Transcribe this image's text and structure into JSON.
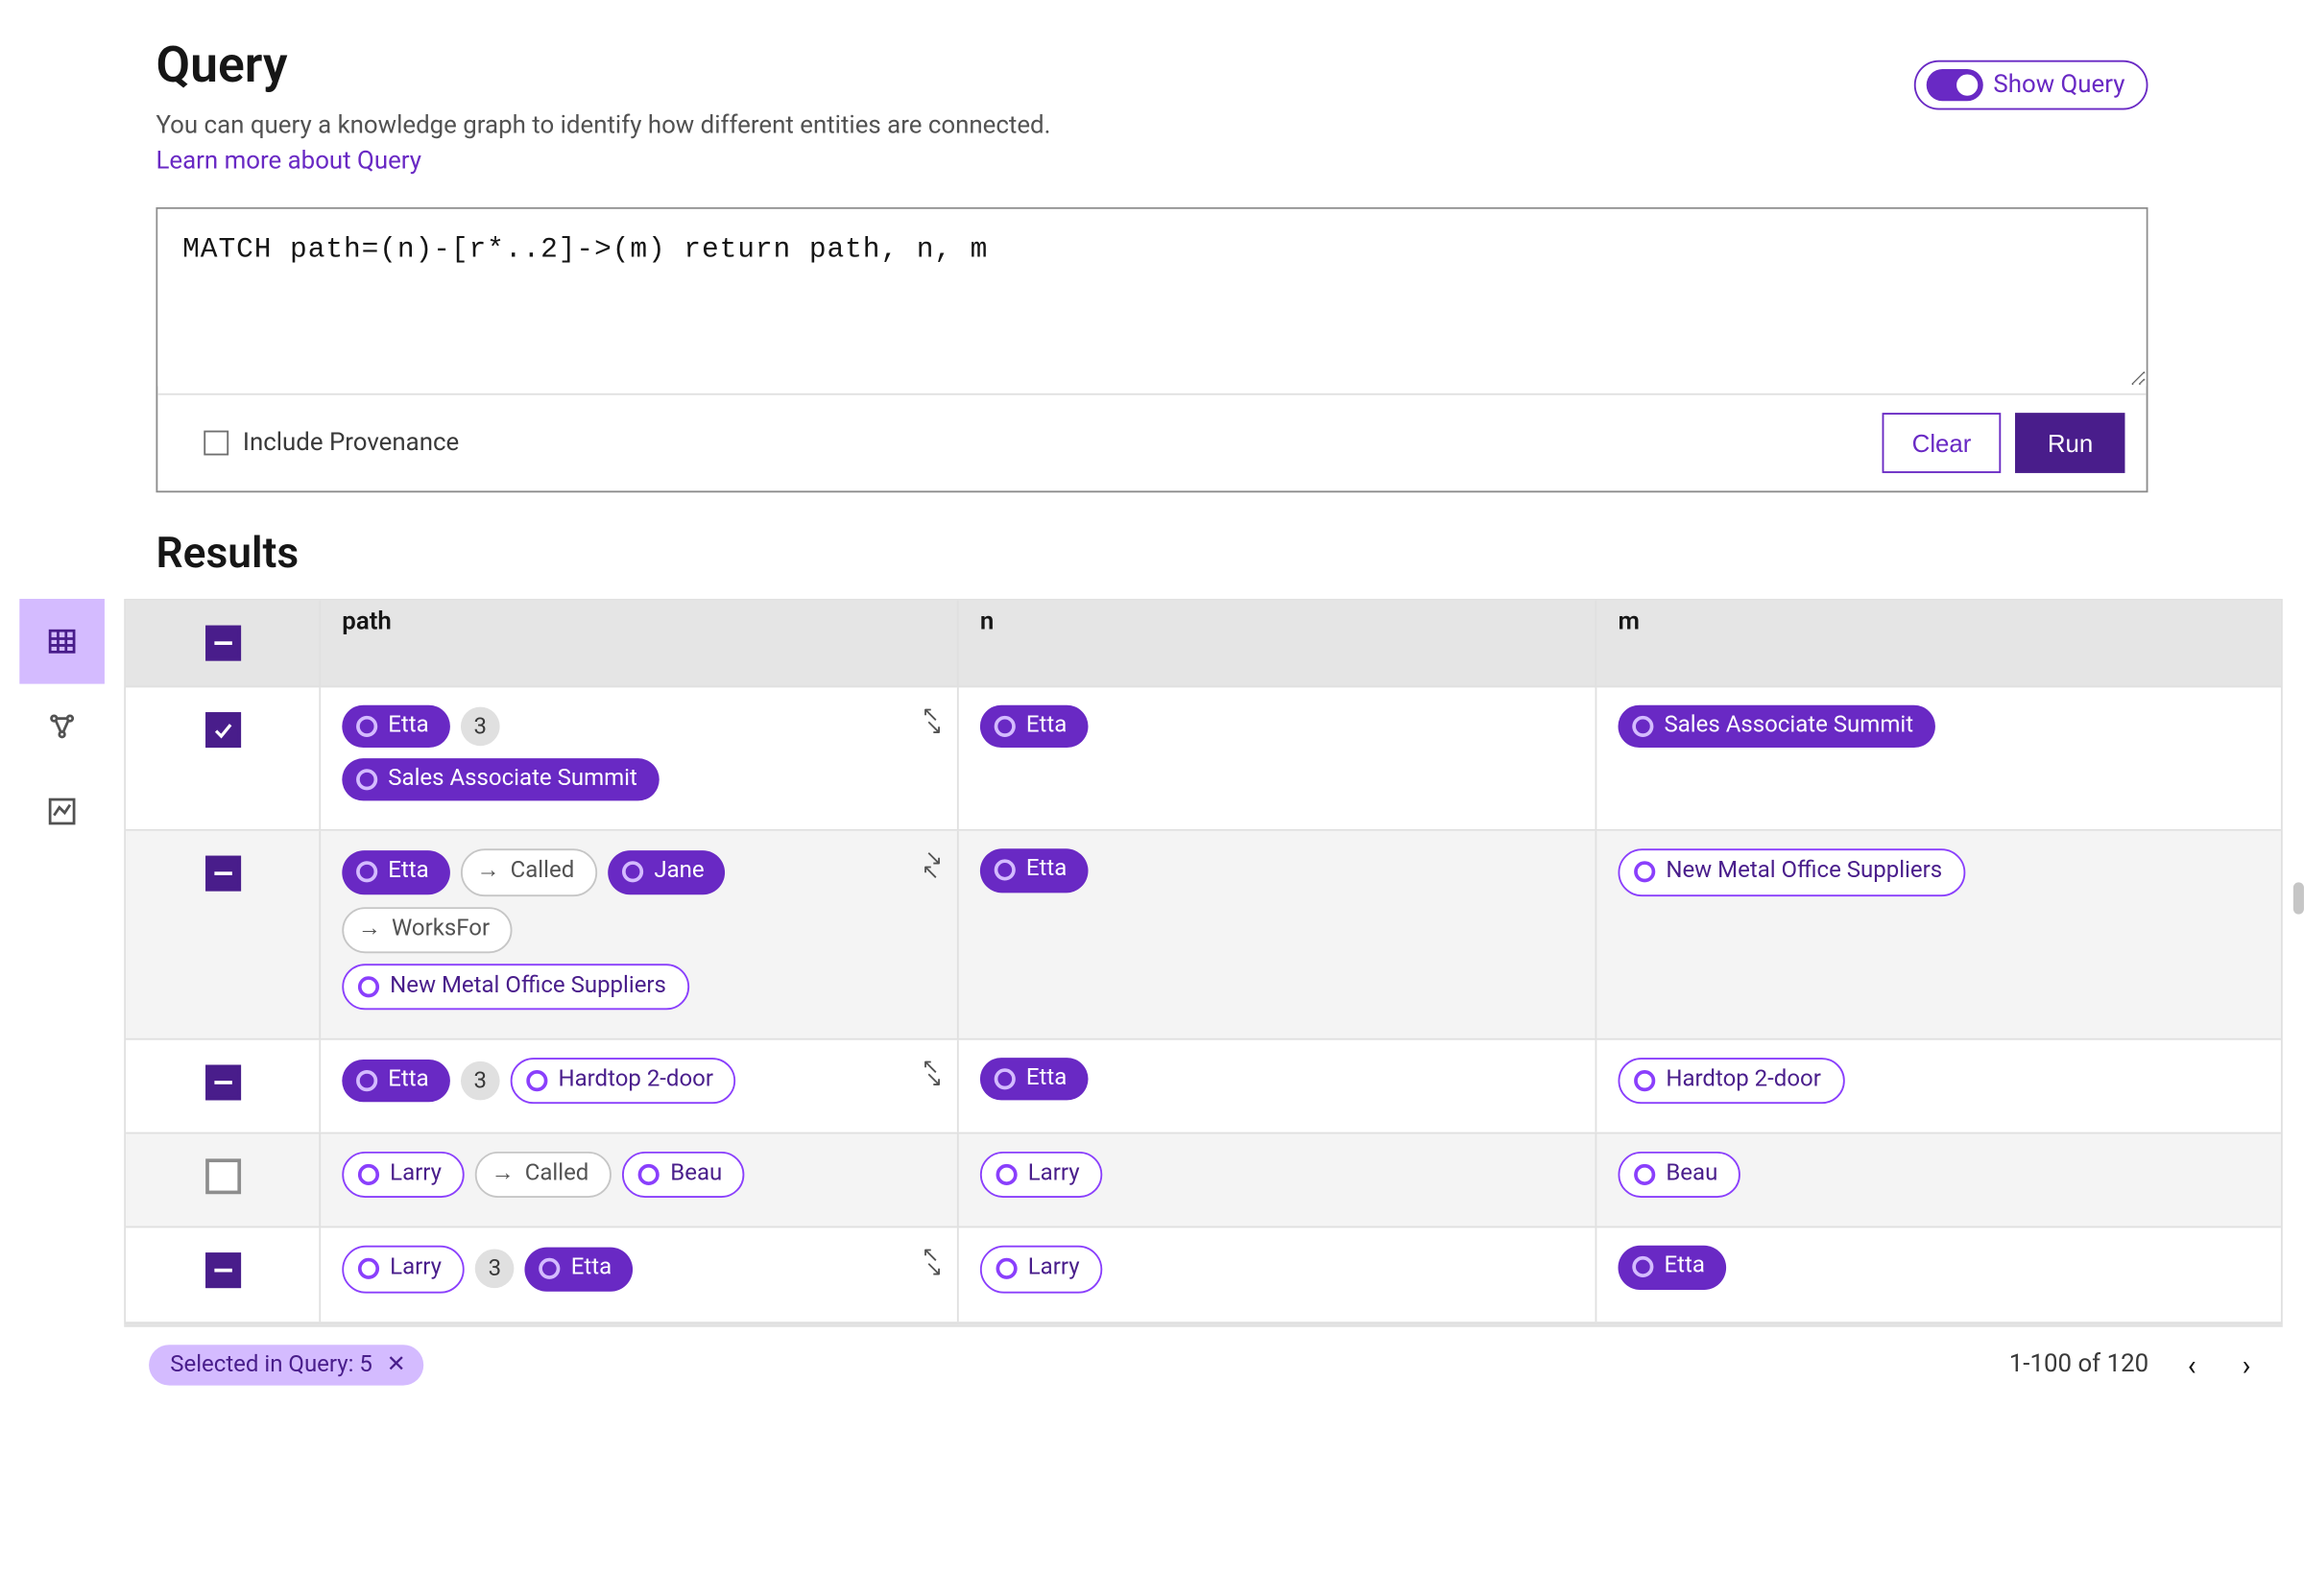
{
  "header": {
    "title": "Query",
    "subtitle": "You can query a knowledge graph to identify how different entities are connected.",
    "learn_more": "Learn more about Query",
    "show_query_label": "Show Query"
  },
  "query": {
    "text": "MATCH path=(n)-[r*..2]->(m) return path, n, m",
    "include_provenance_label": "Include Provenance",
    "include_provenance_checked": false,
    "clear_label": "Clear",
    "run_label": "Run"
  },
  "results": {
    "title": "Results",
    "columns": {
      "path": "path",
      "n": "n",
      "m": "m"
    },
    "header_select_state": "minus",
    "rows": [
      {
        "select_state": "check",
        "alt": false,
        "expandable": "expand",
        "path_lines": [
          [
            {
              "type": "node_filled",
              "label": "Etta"
            },
            {
              "type": "count",
              "label": "3"
            }
          ],
          [
            {
              "type": "node_filled",
              "label": "Sales Associate Summit"
            }
          ]
        ],
        "n": [
          {
            "type": "node_filled",
            "label": "Etta"
          }
        ],
        "m": [
          {
            "type": "node_filled",
            "label": "Sales Associate Summit"
          }
        ]
      },
      {
        "select_state": "minus",
        "alt": true,
        "expandable": "collapse",
        "path_lines": [
          [
            {
              "type": "node_filled",
              "label": "Etta"
            },
            {
              "type": "rel",
              "label": "Called"
            },
            {
              "type": "node_filled",
              "label": "Jane"
            }
          ],
          [
            {
              "type": "rel",
              "label": "WorksFor"
            }
          ],
          [
            {
              "type": "node_outline",
              "label": "New Metal Office Suppliers"
            }
          ]
        ],
        "n": [
          {
            "type": "node_filled",
            "label": "Etta"
          }
        ],
        "m": [
          {
            "type": "node_outline",
            "label": "New Metal Office Suppliers"
          }
        ]
      },
      {
        "select_state": "minus",
        "alt": false,
        "expandable": "expand",
        "path_lines": [
          [
            {
              "type": "node_filled",
              "label": "Etta"
            },
            {
              "type": "count",
              "label": "3"
            },
            {
              "type": "node_outline",
              "label": "Hardtop 2-door"
            }
          ]
        ],
        "n": [
          {
            "type": "node_filled",
            "label": "Etta"
          }
        ],
        "m": [
          {
            "type": "node_outline",
            "label": "Hardtop 2-door"
          }
        ]
      },
      {
        "select_state": "empty",
        "alt": true,
        "expandable": null,
        "path_lines": [
          [
            {
              "type": "node_outline",
              "label": "Larry"
            },
            {
              "type": "rel",
              "label": "Called"
            },
            {
              "type": "node_outline",
              "label": "Beau"
            }
          ]
        ],
        "n": [
          {
            "type": "node_outline",
            "label": "Larry"
          }
        ],
        "m": [
          {
            "type": "node_outline",
            "label": "Beau"
          }
        ]
      },
      {
        "select_state": "minus",
        "alt": false,
        "expandable": "expand",
        "path_lines": [
          [
            {
              "type": "node_outline",
              "label": "Larry"
            },
            {
              "type": "count",
              "label": "3"
            },
            {
              "type": "node_filled",
              "label": "Etta"
            }
          ]
        ],
        "n": [
          {
            "type": "node_outline",
            "label": "Larry"
          }
        ],
        "m": [
          {
            "type": "node_filled",
            "label": "Etta"
          }
        ]
      }
    ],
    "footer": {
      "selected_label": "Selected in Query: 5",
      "range_label": "1-100 of 120"
    }
  },
  "colors": {
    "brand": "#6929c4",
    "brand_dark": "#491d8b",
    "brand_light": "#d4bbff",
    "outline_purple": "#8a3ffc",
    "gray_border": "#e0e0e0",
    "gray_bg": "#f4f4f4",
    "thead_bg": "#e5e5e5",
    "text": "#161616",
    "subtext": "#525252"
  }
}
